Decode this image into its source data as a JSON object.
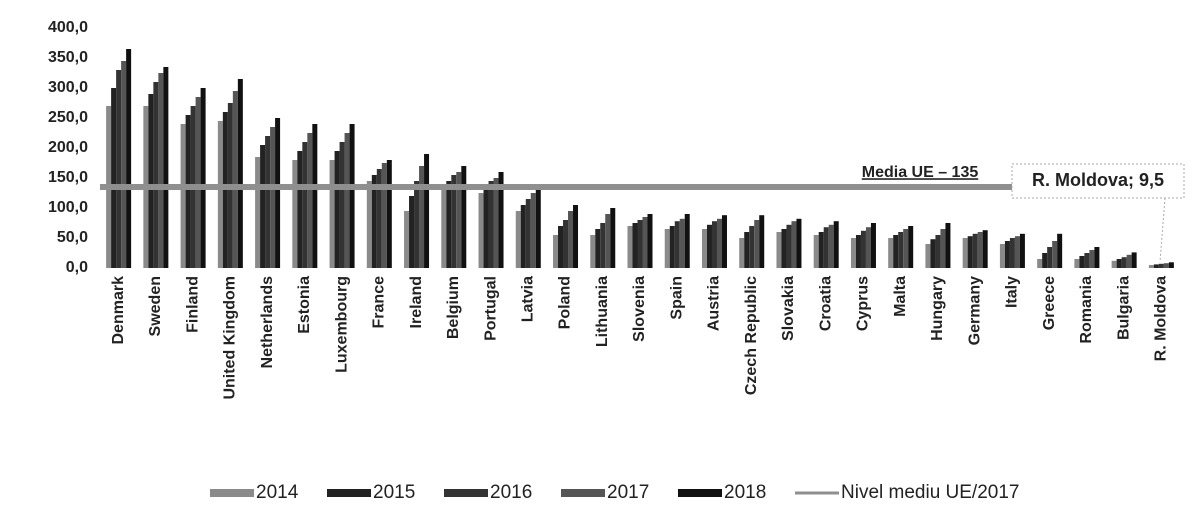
{
  "chart_data": {
    "type": "bar",
    "categories": [
      "Denmark",
      "Sweden",
      "Finland",
      "United Kingdom",
      "Netherlands",
      "Estonia",
      "Luxembourg",
      "France",
      "Ireland",
      "Belgium",
      "Portugal",
      "Latvia",
      "Poland",
      "Lithuania",
      "Slovenia",
      "Spain",
      "Austria",
      "Czech Republic",
      "Slovakia",
      "Croatia",
      "Cyprus",
      "Malta",
      "Hungary",
      "Germany",
      "Italy",
      "Greece",
      "Romania",
      "Bulgaria",
      "R. Moldova"
    ],
    "series": [
      {
        "name": "2014",
        "color": "#8a8a8a",
        "values": [
          270,
          270,
          240,
          245,
          185,
          180,
          180,
          145,
          95,
          140,
          125,
          95,
          55,
          55,
          70,
          65,
          65,
          50,
          60,
          55,
          50,
          50,
          40,
          50,
          40,
          15,
          15,
          12,
          5
        ]
      },
      {
        "name": "2015",
        "color": "#222222",
        "values": [
          300,
          290,
          255,
          260,
          205,
          195,
          195,
          155,
          120,
          145,
          135,
          105,
          70,
          65,
          75,
          70,
          72,
          60,
          65,
          60,
          55,
          55,
          48,
          53,
          45,
          25,
          20,
          15,
          6
        ]
      },
      {
        "name": "2016",
        "color": "#333333",
        "values": [
          330,
          310,
          270,
          275,
          220,
          210,
          210,
          165,
          145,
          155,
          145,
          115,
          80,
          75,
          80,
          78,
          78,
          70,
          72,
          68,
          62,
          60,
          55,
          57,
          50,
          35,
          25,
          18,
          7
        ]
      },
      {
        "name": "2017",
        "color": "#555555",
        "values": [
          345,
          325,
          285,
          295,
          235,
          225,
          225,
          175,
          170,
          160,
          150,
          125,
          95,
          90,
          85,
          82,
          82,
          80,
          78,
          72,
          68,
          65,
          65,
          60,
          53,
          45,
          30,
          22,
          8
        ]
      },
      {
        "name": "2018",
        "color": "#111111",
        "values": [
          365,
          335,
          300,
          315,
          250,
          240,
          240,
          180,
          190,
          170,
          160,
          130,
          105,
          100,
          90,
          90,
          88,
          88,
          82,
          78,
          75,
          70,
          75,
          63,
          57,
          57,
          35,
          26,
          9.5
        ]
      }
    ],
    "reference_line": {
      "name": "Nivel mediu UE/2017",
      "value": 135,
      "label": "Media UE – 135",
      "color": "#8f8f8f"
    },
    "annotations": [
      {
        "text": "R. Moldova; 9,5"
      }
    ],
    "ylim": [
      0,
      400
    ],
    "yticks": [
      {
        "value": 0,
        "label": "0,0"
      },
      {
        "value": 50,
        "label": "50,0"
      },
      {
        "value": 100,
        "label": "100,0"
      },
      {
        "value": 150,
        "label": "150,0"
      },
      {
        "value": 200,
        "label": "200,0"
      },
      {
        "value": 250,
        "label": "250,0"
      },
      {
        "value": 300,
        "label": "300,0"
      },
      {
        "value": 350,
        "label": "350,0"
      },
      {
        "value": 400,
        "label": "400,0"
      }
    ],
    "grid": false
  }
}
